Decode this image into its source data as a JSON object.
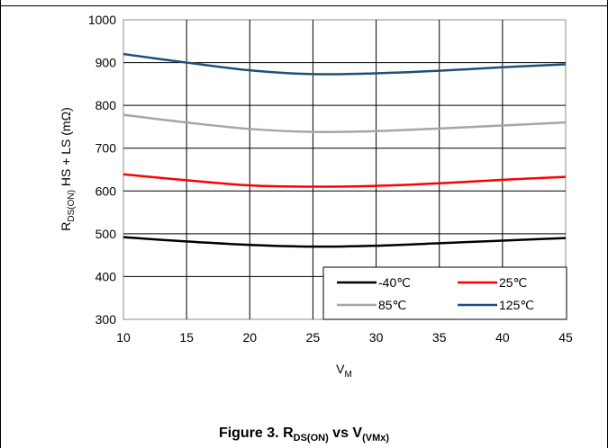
{
  "chart_data": {
    "type": "line",
    "x": [
      10,
      15,
      20,
      25,
      30,
      35,
      40,
      45
    ],
    "xlim": [
      10,
      45
    ],
    "ylim": [
      300,
      1000
    ],
    "xticks": [
      10,
      15,
      20,
      25,
      30,
      35,
      40,
      45
    ],
    "yticks": [
      300,
      400,
      500,
      600,
      700,
      800,
      900,
      1000
    ],
    "grid": true,
    "legend_position": "bottom-right",
    "xlabel": {
      "main": "V",
      "sub": "M"
    },
    "ylabel": {
      "prefix": "R",
      "sub": "DS(ON)",
      "rest": " HS + LS (mΩ)"
    },
    "series": [
      {
        "name": "-40℃",
        "color": "#000000",
        "values": [
          492,
          482,
          474,
          470,
          472,
          478,
          484,
          490
        ]
      },
      {
        "name": "25℃",
        "color": "#ff0000",
        "values": [
          639,
          625,
          613,
          610,
          612,
          618,
          626,
          633
        ]
      },
      {
        "name": "85℃",
        "color": "#a6a6a6",
        "values": [
          778,
          760,
          745,
          738,
          740,
          746,
          753,
          760
        ]
      },
      {
        "name": "125℃",
        "color": "#1f4e79",
        "values": [
          920,
          900,
          882,
          873,
          875,
          881,
          889,
          896
        ]
      }
    ]
  },
  "caption": {
    "prefix": "Figure 3. R",
    "sub1": "DS(ON)",
    "middle": " vs V",
    "sub2": "(VMx)"
  }
}
